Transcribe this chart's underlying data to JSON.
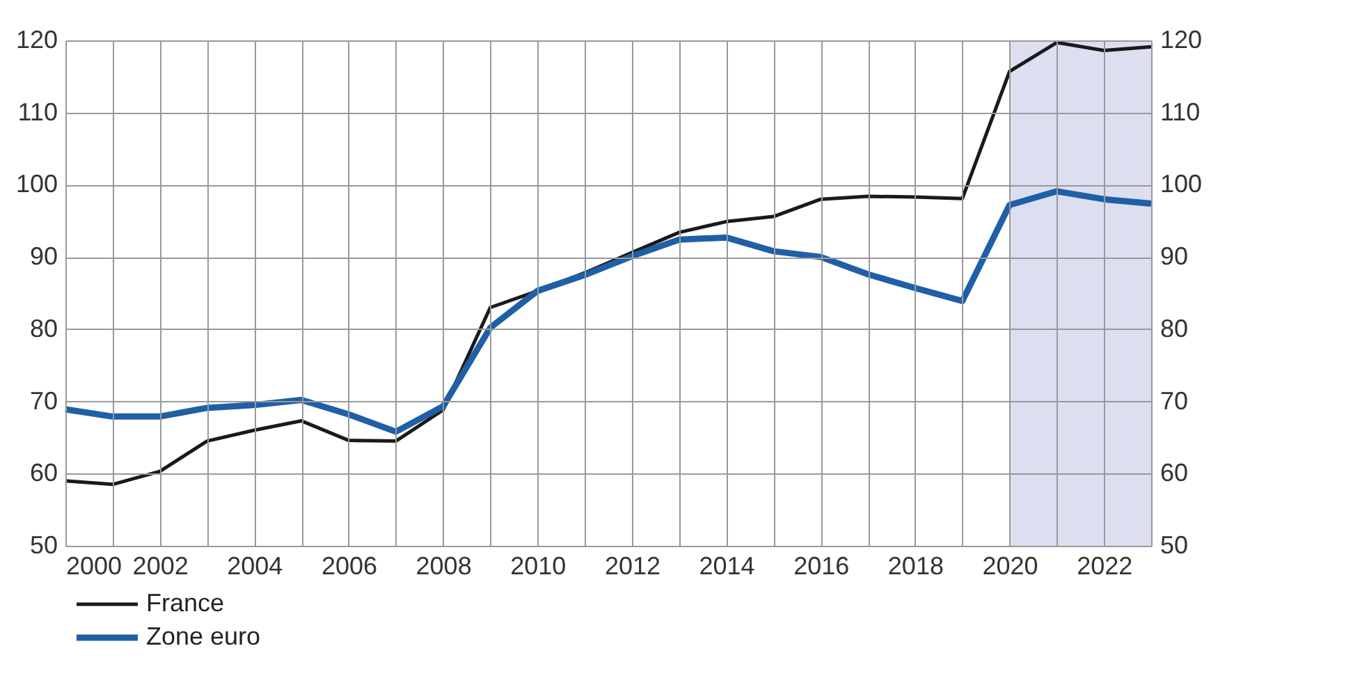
{
  "chart_data": {
    "type": "line",
    "x": [
      2000,
      2001,
      2002,
      2003,
      2004,
      2005,
      2006,
      2007,
      2008,
      2009,
      2010,
      2011,
      2012,
      2013,
      2014,
      2015,
      2016,
      2017,
      2018,
      2019,
      2020,
      2021,
      2022,
      2023
    ],
    "series": [
      {
        "name": "France",
        "color": "#1a1a1a",
        "values": [
          59,
          58.5,
          60.3,
          64.5,
          66,
          67.3,
          64.6,
          64.5,
          68.8,
          83,
          85.3,
          87.8,
          90.6,
          93.4,
          94.9,
          95.6,
          98,
          98.4,
          98.3,
          98.1,
          115.7,
          119.7,
          118.6,
          119.1
        ]
      },
      {
        "name": "Zone euro",
        "color": "#1f5fa6",
        "values": [
          68.9,
          67.9,
          67.9,
          69.1,
          69.5,
          70.2,
          68.2,
          65.8,
          69.3,
          80.2,
          85.3,
          87.5,
          90.1,
          92.4,
          92.7,
          90.8,
          90,
          87.6,
          85.7,
          83.9,
          97.2,
          99.1,
          98,
          97.4
        ]
      }
    ],
    "xlim": [
      2000,
      2023
    ],
    "xticks": [
      2000,
      {
        "value": 2001,
        "label": null
      },
      2002,
      {
        "value": 2003,
        "label": null
      },
      2004,
      {
        "value": 2005,
        "label": null
      },
      2006,
      {
        "value": 2007,
        "label": null
      },
      2008,
      {
        "value": 2009,
        "label": null
      },
      2010,
      {
        "value": 2011,
        "label": null
      },
      2012,
      {
        "value": 2013,
        "label": null
      },
      2014,
      {
        "value": 2015,
        "label": null
      },
      2016,
      {
        "value": 2017,
        "label": null
      },
      2018,
      {
        "value": 2019,
        "label": null
      },
      2020,
      {
        "value": 2021,
        "label": null
      },
      2022,
      {
        "value": 2023,
        "label": null
      }
    ],
    "ylim": [
      50,
      120
    ],
    "yticks": [
      50,
      60,
      70,
      80,
      90,
      100,
      110,
      120
    ],
    "y2lim": [
      50,
      120
    ],
    "y2ticks": [
      50,
      60,
      70,
      80,
      90,
      100,
      110,
      120
    ],
    "bands": [
      {
        "axis": "x",
        "from": 2020,
        "to": 2023,
        "color": "#dcdff0"
      }
    ],
    "grid": true,
    "legend": "bottom left"
  }
}
